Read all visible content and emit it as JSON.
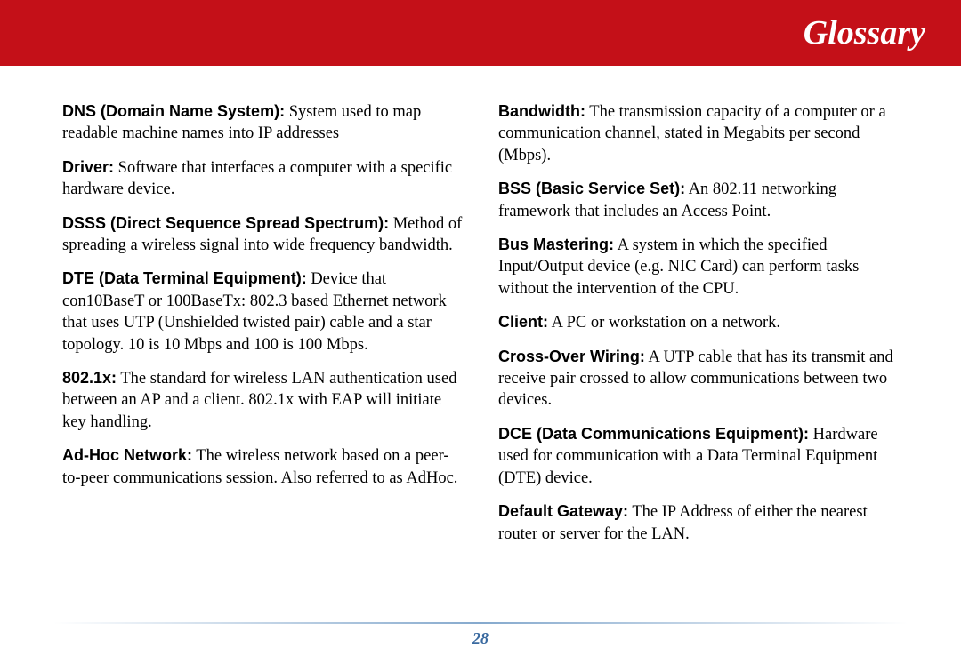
{
  "header": {
    "title": "Glossary"
  },
  "page_number": "28",
  "colors": {
    "header_bg": "#c41018",
    "header_text": "#ffffff",
    "body_text": "#000000",
    "page_num_color": "#3a6aa0"
  },
  "left_column": [
    {
      "term": "DNS (Domain Name System):",
      "def": "  System used to map readable machine names into IP addresses"
    },
    {
      "term": "Driver:",
      "def": "  Software that interfaces a computer with a specific hardware device."
    },
    {
      "term": "DSSS (Direct Sequence Spread Spectrum):",
      "def": "  Method of spreading a wireless signal into wide frequency bandwidth."
    },
    {
      "term": "DTE (Data Terminal Equipment):",
      "def": "  Device that con10BaseT or 100BaseTx:  802.3 based Ethernet network that uses UTP (Unshielded twisted pair) cable and a star topology.  10 is 10 Mbps and 100 is 100 Mbps."
    },
    {
      "term": "802.1x:",
      "def": " The standard for wireless LAN authentication used between an AP and a client.  802.1x with EAP will initiate key handling."
    },
    {
      "term": "Ad-Hoc Network:",
      "def": " The wireless network based on a peer-to-peer communications session.  Also referred to as AdHoc."
    }
  ],
  "right_column": [
    {
      "term": "Bandwidth:",
      "def": "  The transmission capacity of a computer or a communication channel, stated in Megabits per second (Mbps)."
    },
    {
      "term": "BSS (Basic Service Set):",
      "def": "  An 802.11 networking framework that includes an Access Point."
    },
    {
      "term": "Bus Mastering:",
      "def": "  A system in which the specified Input/Output device (e.g. NIC Card) can perform tasks without the intervention of the CPU."
    },
    {
      "term": "Client:",
      "def": " A PC or workstation on a network."
    },
    {
      "term": "Cross-Over Wiring:",
      "def": " A UTP cable that has its transmit and receive pair crossed to allow communications between two devices."
    },
    {
      "term": "DCE (Data Communications Equipment):",
      "def": "  Hardware used for communication with a Data Terminal Equipment (DTE) device."
    },
    {
      "term": "Default Gateway:",
      "def": " The IP Address of either the nearest router or server for the LAN."
    }
  ]
}
